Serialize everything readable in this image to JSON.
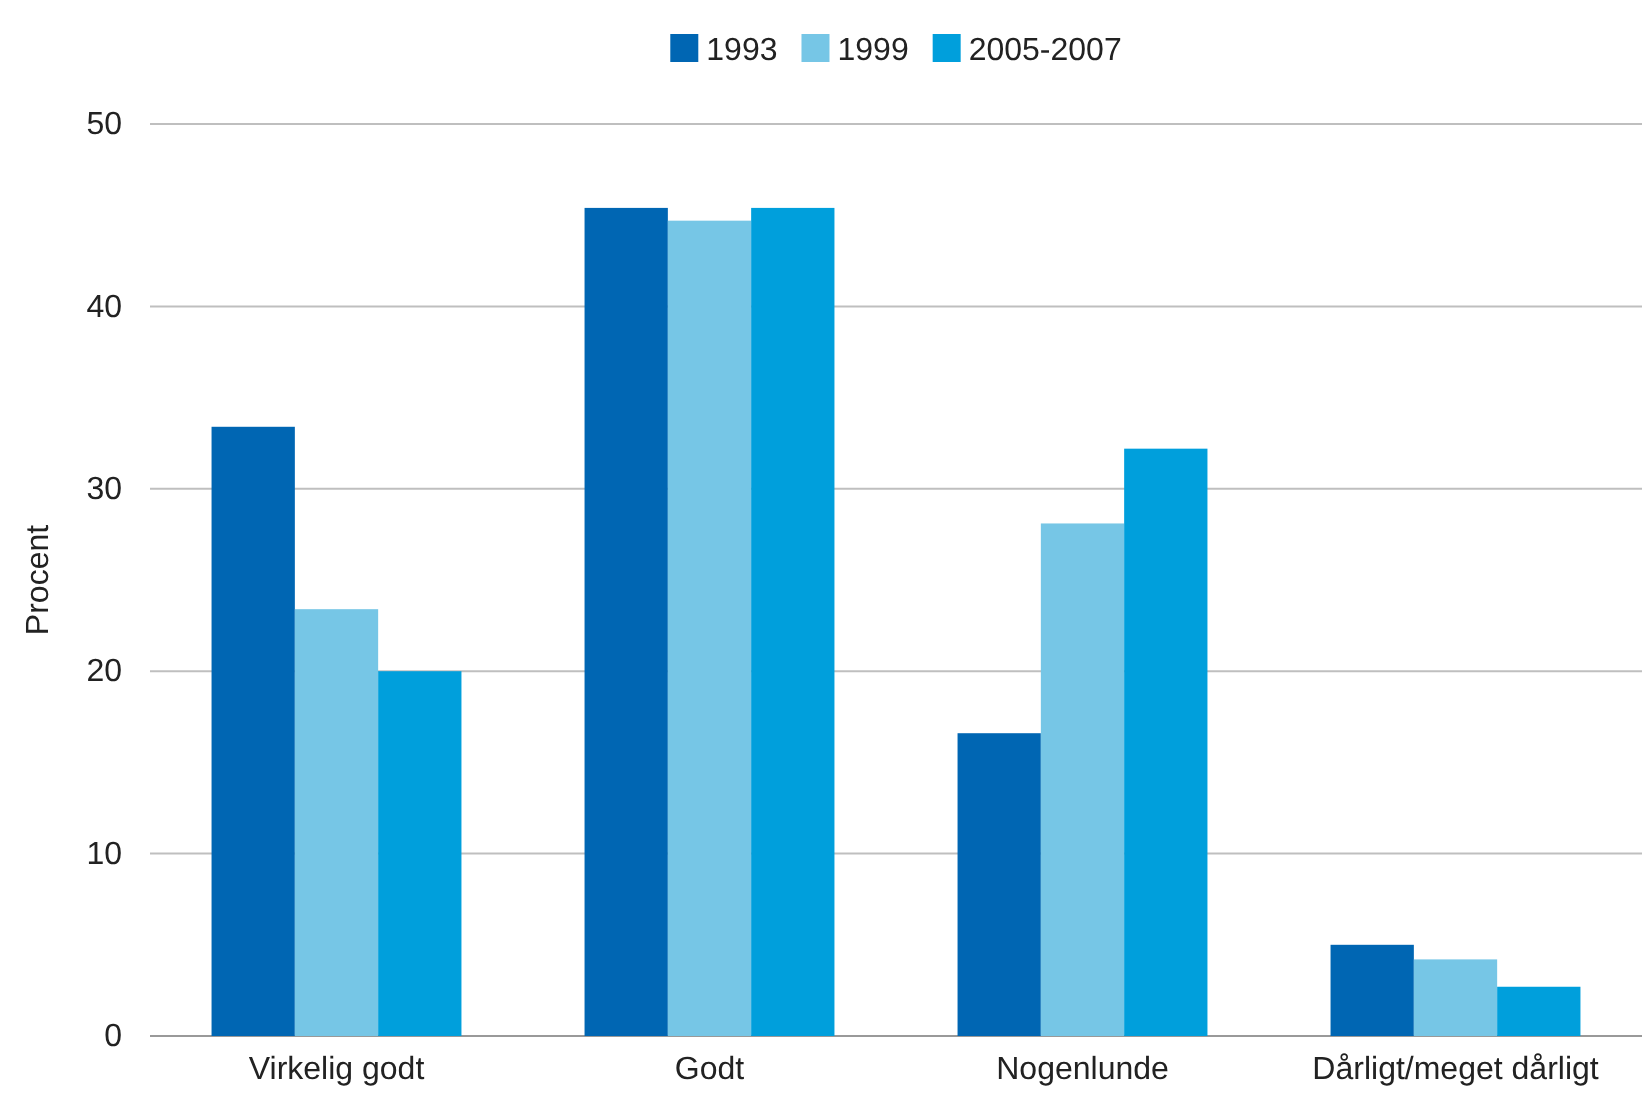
{
  "chart_data": {
    "type": "bar",
    "ylabel": "Procent",
    "categories": [
      "Virkelig godt",
      "Godt",
      "Nogenlunde",
      "Dårligt/meget dårligt"
    ],
    "series": [
      {
        "name": "1993",
        "color": "#0066b3",
        "values": [
          33.4,
          45.4,
          16.6,
          5.0
        ]
      },
      {
        "name": "1999",
        "color": "#76c6e6",
        "values": [
          23.4,
          44.7,
          28.1,
          4.2
        ]
      },
      {
        "name": "2005-2007",
        "color": "#009fdc",
        "values": [
          20.0,
          45.4,
          32.2,
          2.7
        ]
      }
    ],
    "ylim": [
      0,
      50
    ],
    "yticks": [
      0,
      10,
      20,
      30,
      40,
      50
    ],
    "grid": "y",
    "legend": "top"
  }
}
